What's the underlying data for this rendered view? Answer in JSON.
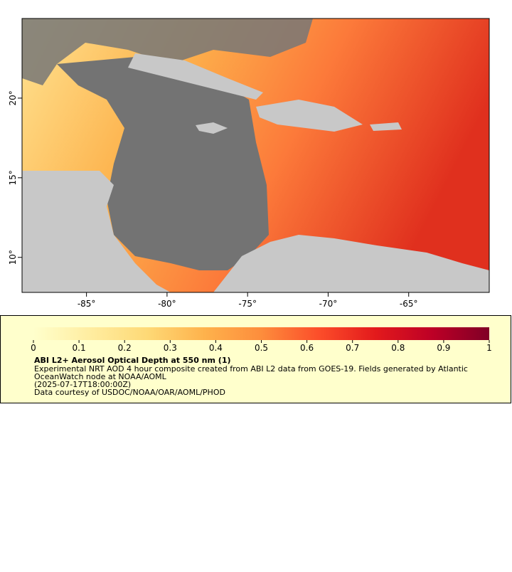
{
  "map": {
    "xlim": [
      -89,
      -60
    ],
    "ylim": [
      7.8,
      25
    ],
    "xticks": [
      {
        "value": -85,
        "label": "-85°"
      },
      {
        "value": -80,
        "label": "-80°"
      },
      {
        "value": -75,
        "label": "-75°"
      },
      {
        "value": -70,
        "label": "-70°"
      },
      {
        "value": -65,
        "label": "-65°"
      }
    ],
    "yticks": [
      {
        "value": 10,
        "label": "10°"
      },
      {
        "value": 15,
        "label": "15°"
      },
      {
        "value": 20,
        "label": "20°"
      }
    ]
  },
  "colorbar": {
    "range": [
      0,
      1
    ],
    "ticks": [
      0,
      0.1,
      0.2,
      0.3,
      0.4,
      0.5,
      0.6,
      0.7,
      0.8,
      0.9,
      1
    ],
    "colors": [
      "#ffffcc",
      "#ffeda0",
      "#fed976",
      "#feb24c",
      "#fd8d3c",
      "#fc4e2a",
      "#e31a1c",
      "#bd0026",
      "#800026"
    ]
  },
  "caption": {
    "title": "ABI L2+ Aerosol Optical Depth at 550 nm (1)",
    "lines": [
      "Experimental NRT AOD 4 hour composite created from ABI L2 data from GOES-19. Fields generated by Atlantic",
      "OceanWatch node at NOAA/AOML",
      "(2025-07-17T18:00:00Z)",
      "Data courtesy of USDOC/NOAA/OAR/AOML/PHOD"
    ]
  }
}
